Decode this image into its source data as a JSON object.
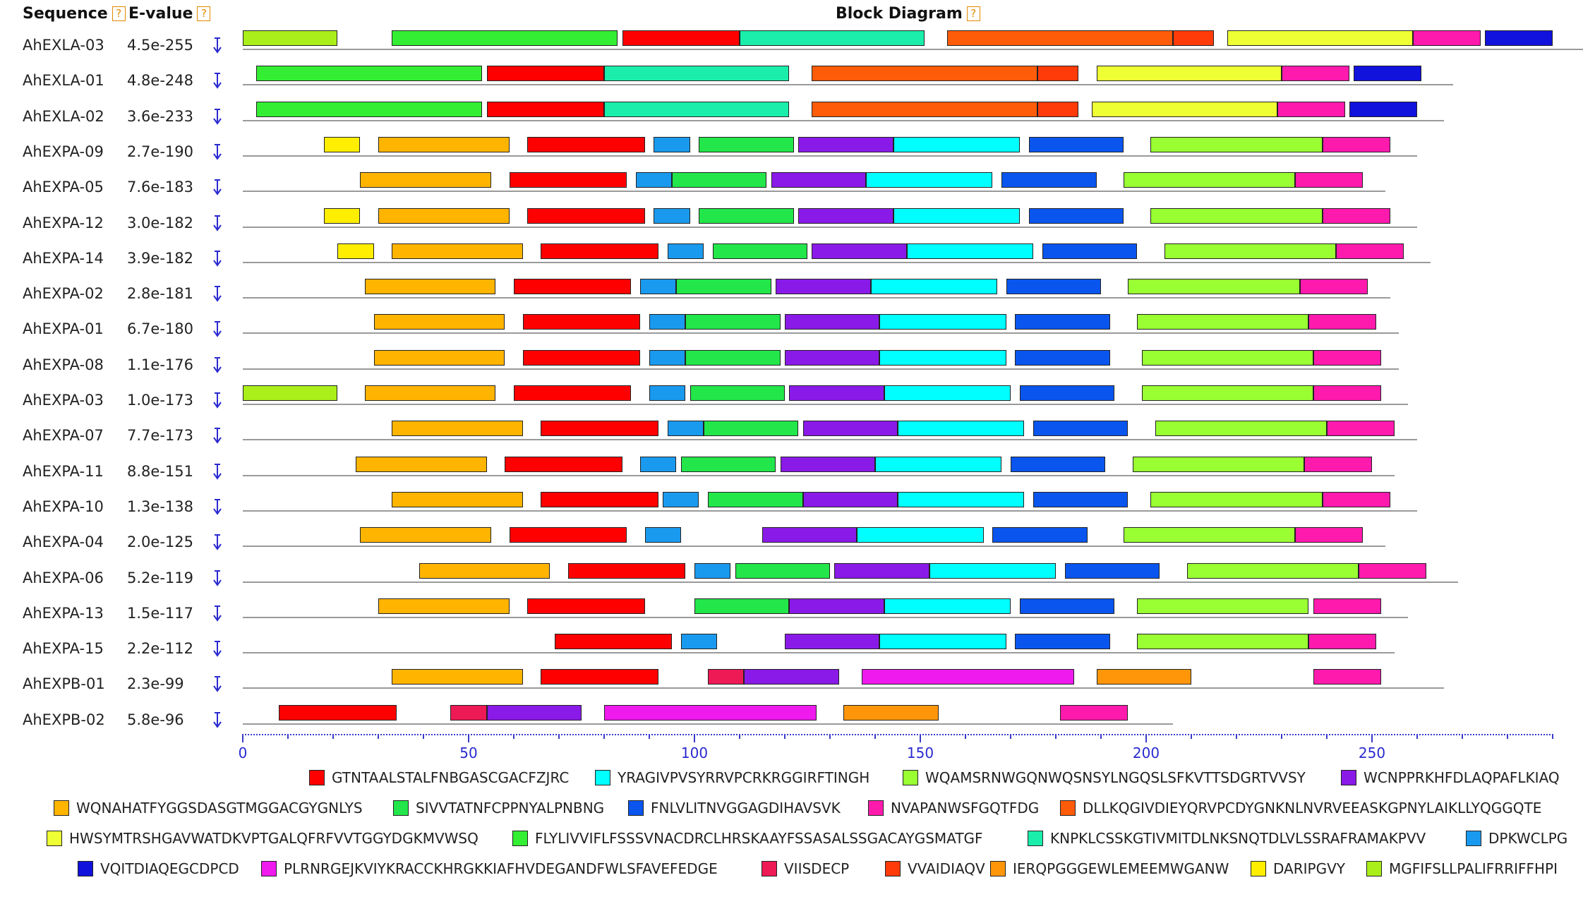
{
  "header": {
    "sequence_label": "Sequence",
    "evalue_label": "E-value",
    "diagram_label": "Block Diagram",
    "help_glyph": "?"
  },
  "download_icon": "download-arrow-icon",
  "motifs": [
    {
      "id": 1,
      "color": "#ff0000",
      "seq": "GTNTAALSTALFNBGASCGACFZJRC"
    },
    {
      "id": 2,
      "color": "#00ffff",
      "seq": "YRAGIVPVSYRRVPCRKRGGIRFTINGH"
    },
    {
      "id": 3,
      "color": "#99ff33",
      "seq": "WQAMSRNWGQNWQSNSYLNGQSLSFKVTTSDGRTVVSY"
    },
    {
      "id": 4,
      "color": "#8a1ae8",
      "seq": "WCNPPRKHFDLAQPAFLKIAQ"
    },
    {
      "id": 5,
      "color": "#ffb400",
      "seq": "WQNAHATFYGGSDASGTMGGACGYGNLYS"
    },
    {
      "id": 6,
      "color": "#22e64a",
      "seq": "SIVVTATNFCPPNYALPNBNG"
    },
    {
      "id": 7,
      "color": "#0a55ee",
      "seq": "FNLVLITNVGGAGDIHAVSVK"
    },
    {
      "id": 8,
      "color": "#ff1aae",
      "seq": "NVAPANWSFGQTFDG"
    },
    {
      "id": 9,
      "color": "#ff5c0a",
      "seq": "DLLKQGIVDIEYQRVPCDYGNKNLNVRVEEASKGPNYLAIKLLYQGGQTE"
    },
    {
      "id": 10,
      "color": "#eeff33",
      "seq": "HWSYMTRSHGAVWATDKVPTGALQFRFVVTGGYDGKMVWSQ"
    },
    {
      "id": 11,
      "color": "#33ee33",
      "seq": "FLYLIVVIFLFSSSVNACDRCLHRSKAAYFSSASALSSGACAYGSMATGF"
    },
    {
      "id": 12,
      "color": "#1aeeaa",
      "seq": "KNPKLCSSKGTIVMITDLNKSNQTDLVLSSRAFRAMAKPVV"
    },
    {
      "id": 13,
      "color": "#1a9aee",
      "seq": "DPKWCLPG"
    },
    {
      "id": 14,
      "color": "#1212dd",
      "seq": "VQITDIAQEGCDPCD"
    },
    {
      "id": 15,
      "color": "#ee1aee",
      "seq": "PLRNRGEJKVIYKRACCKHRGKKIAFHVDEGANDFWLSFAVEFEDGE"
    },
    {
      "id": 16,
      "color": "#ee1a55",
      "seq": "VIISDECP"
    },
    {
      "id": 17,
      "color": "#ff3b0a",
      "seq": "VVAIDIAQV"
    },
    {
      "id": 18,
      "color": "#ff960a",
      "seq": "IERQPGGGEWLEMEEMWGANW"
    },
    {
      "id": 19,
      "color": "#ffee00",
      "seq": "DARIPGVY"
    },
    {
      "id": 20,
      "color": "#aaee1a",
      "seq": "MGFIFSLLPALIFRRIFFHPI"
    }
  ],
  "sequences": [
    {
      "name": "AhEXLA-03",
      "evalue": "4.5e-255",
      "length": 297,
      "blocks": [
        [
          0,
          21,
          20
        ],
        [
          33,
          83,
          11
        ],
        [
          84,
          110,
          1
        ],
        [
          110,
          151,
          12
        ],
        [
          156,
          206,
          9
        ],
        [
          206,
          215,
          17
        ],
        [
          218,
          259,
          10
        ],
        [
          259,
          274,
          8
        ],
        [
          275,
          290,
          14
        ]
      ]
    },
    {
      "name": "AhEXLA-01",
      "evalue": "4.8e-248",
      "length": 268,
      "blocks": [
        [
          3,
          53,
          11
        ],
        [
          54,
          80,
          1
        ],
        [
          80,
          121,
          12
        ],
        [
          126,
          176,
          9
        ],
        [
          176,
          185,
          17
        ],
        [
          189,
          230,
          10
        ],
        [
          230,
          245,
          8
        ],
        [
          246,
          261,
          14
        ]
      ]
    },
    {
      "name": "AhEXLA-02",
      "evalue": "3.6e-233",
      "length": 266,
      "blocks": [
        [
          3,
          53,
          11
        ],
        [
          54,
          80,
          1
        ],
        [
          80,
          121,
          12
        ],
        [
          126,
          176,
          9
        ],
        [
          176,
          185,
          17
        ],
        [
          188,
          229,
          10
        ],
        [
          229,
          244,
          8
        ],
        [
          245,
          260,
          14
        ]
      ]
    },
    {
      "name": "AhEXPA-09",
      "evalue": "2.7e-190",
      "length": 260,
      "blocks": [
        [
          18,
          26,
          19
        ],
        [
          30,
          59,
          5
        ],
        [
          63,
          89,
          1
        ],
        [
          91,
          99,
          13
        ],
        [
          101,
          122,
          6
        ],
        [
          123,
          144,
          4
        ],
        [
          144,
          172,
          2
        ],
        [
          174,
          195,
          7
        ],
        [
          201,
          239,
          3
        ],
        [
          239,
          254,
          8
        ]
      ]
    },
    {
      "name": "AhEXPA-05",
      "evalue": "7.6e-183",
      "length": 253,
      "blocks": [
        [
          26,
          55,
          5
        ],
        [
          59,
          85,
          1
        ],
        [
          87,
          95,
          13
        ],
        [
          95,
          116,
          6
        ],
        [
          117,
          138,
          4
        ],
        [
          138,
          166,
          2
        ],
        [
          168,
          189,
          7
        ],
        [
          195,
          233,
          3
        ],
        [
          233,
          248,
          8
        ]
      ]
    },
    {
      "name": "AhEXPA-12",
      "evalue": "3.0e-182",
      "length": 260,
      "blocks": [
        [
          18,
          26,
          19
        ],
        [
          30,
          59,
          5
        ],
        [
          63,
          89,
          1
        ],
        [
          91,
          99,
          13
        ],
        [
          101,
          122,
          6
        ],
        [
          123,
          144,
          4
        ],
        [
          144,
          172,
          2
        ],
        [
          174,
          195,
          7
        ],
        [
          201,
          239,
          3
        ],
        [
          239,
          254,
          8
        ]
      ]
    },
    {
      "name": "AhEXPA-14",
      "evalue": "3.9e-182",
      "length": 263,
      "blocks": [
        [
          21,
          29,
          19
        ],
        [
          33,
          62,
          5
        ],
        [
          66,
          92,
          1
        ],
        [
          94,
          102,
          13
        ],
        [
          104,
          125,
          6
        ],
        [
          126,
          147,
          4
        ],
        [
          147,
          175,
          2
        ],
        [
          177,
          198,
          7
        ],
        [
          204,
          242,
          3
        ],
        [
          242,
          257,
          8
        ]
      ]
    },
    {
      "name": "AhEXPA-02",
      "evalue": "2.8e-181",
      "length": 254,
      "blocks": [
        [
          27,
          56,
          5
        ],
        [
          60,
          86,
          1
        ],
        [
          88,
          96,
          13
        ],
        [
          96,
          117,
          6
        ],
        [
          118,
          139,
          4
        ],
        [
          139,
          167,
          2
        ],
        [
          169,
          190,
          7
        ],
        [
          196,
          234,
          3
        ],
        [
          234,
          249,
          8
        ]
      ]
    },
    {
      "name": "AhEXPA-01",
      "evalue": "6.7e-180",
      "length": 256,
      "blocks": [
        [
          29,
          58,
          5
        ],
        [
          62,
          88,
          1
        ],
        [
          90,
          98,
          13
        ],
        [
          98,
          119,
          6
        ],
        [
          120,
          141,
          4
        ],
        [
          141,
          169,
          2
        ],
        [
          171,
          192,
          7
        ],
        [
          198,
          236,
          3
        ],
        [
          236,
          251,
          8
        ]
      ]
    },
    {
      "name": "AhEXPA-08",
      "evalue": "1.1e-176",
      "length": 256,
      "blocks": [
        [
          29,
          58,
          5
        ],
        [
          62,
          88,
          1
        ],
        [
          90,
          98,
          13
        ],
        [
          98,
          119,
          6
        ],
        [
          120,
          141,
          4
        ],
        [
          141,
          169,
          2
        ],
        [
          171,
          192,
          7
        ],
        [
          199,
          237,
          3
        ],
        [
          237,
          252,
          8
        ]
      ]
    },
    {
      "name": "AhEXPA-03",
      "evalue": "1.0e-173",
      "length": 258,
      "blocks": [
        [
          0,
          21,
          20
        ],
        [
          27,
          56,
          5
        ],
        [
          60,
          86,
          1
        ],
        [
          90,
          98,
          13
        ],
        [
          99,
          120,
          6
        ],
        [
          121,
          142,
          4
        ],
        [
          142,
          170,
          2
        ],
        [
          172,
          193,
          7
        ],
        [
          199,
          237,
          3
        ],
        [
          237,
          252,
          8
        ]
      ]
    },
    {
      "name": "AhEXPA-07",
      "evalue": "7.7e-173",
      "length": 260,
      "blocks": [
        [
          33,
          62,
          5
        ],
        [
          66,
          92,
          1
        ],
        [
          94,
          102,
          13
        ],
        [
          102,
          123,
          6
        ],
        [
          124,
          145,
          4
        ],
        [
          145,
          173,
          2
        ],
        [
          175,
          196,
          7
        ],
        [
          202,
          240,
          3
        ],
        [
          240,
          255,
          8
        ]
      ]
    },
    {
      "name": "AhEXPA-11",
      "evalue": "8.8e-151",
      "length": 255,
      "blocks": [
        [
          25,
          54,
          5
        ],
        [
          58,
          84,
          1
        ],
        [
          88,
          96,
          13
        ],
        [
          97,
          118,
          6
        ],
        [
          119,
          140,
          4
        ],
        [
          140,
          168,
          2
        ],
        [
          170,
          191,
          7
        ],
        [
          197,
          235,
          3
        ],
        [
          235,
          250,
          8
        ]
      ]
    },
    {
      "name": "AhEXPA-10",
      "evalue": "1.3e-138",
      "length": 260,
      "blocks": [
        [
          33,
          62,
          5
        ],
        [
          66,
          92,
          1
        ],
        [
          93,
          101,
          13
        ],
        [
          103,
          124,
          6
        ],
        [
          124,
          145,
          4
        ],
        [
          145,
          173,
          2
        ],
        [
          175,
          196,
          7
        ],
        [
          201,
          239,
          3
        ],
        [
          239,
          254,
          8
        ]
      ]
    },
    {
      "name": "AhEXPA-04",
      "evalue": "2.0e-125",
      "length": 253,
      "blocks": [
        [
          26,
          55,
          5
        ],
        [
          59,
          85,
          1
        ],
        [
          89,
          97,
          13
        ],
        [
          115,
          136,
          4
        ],
        [
          136,
          164,
          2
        ],
        [
          166,
          187,
          7
        ],
        [
          195,
          233,
          3
        ],
        [
          233,
          248,
          8
        ]
      ]
    },
    {
      "name": "AhEXPA-06",
      "evalue": "5.2e-119",
      "length": 269,
      "blocks": [
        [
          39,
          68,
          5
        ],
        [
          72,
          98,
          1
        ],
        [
          100,
          108,
          13
        ],
        [
          109,
          130,
          6
        ],
        [
          131,
          152,
          4
        ],
        [
          152,
          180,
          2
        ],
        [
          182,
          203,
          7
        ],
        [
          209,
          247,
          3
        ],
        [
          247,
          262,
          8
        ]
      ]
    },
    {
      "name": "AhEXPA-13",
      "evalue": "1.5e-117",
      "length": 258,
      "blocks": [
        [
          30,
          59,
          5
        ],
        [
          63,
          89,
          1
        ],
        [
          100,
          121,
          6
        ],
        [
          121,
          142,
          4
        ],
        [
          142,
          170,
          2
        ],
        [
          172,
          193,
          7
        ],
        [
          198,
          236,
          3
        ],
        [
          237,
          252,
          8
        ]
      ]
    },
    {
      "name": "AhEXPA-15",
      "evalue": "2.2e-112",
      "length": 255,
      "blocks": [
        [
          69,
          95,
          1
        ],
        [
          97,
          105,
          13
        ],
        [
          120,
          141,
          4
        ],
        [
          141,
          169,
          2
        ],
        [
          171,
          192,
          7
        ],
        [
          198,
          236,
          3
        ],
        [
          236,
          251,
          8
        ]
      ]
    },
    {
      "name": "AhEXPB-01",
      "evalue": "2.3e-99",
      "length": 266,
      "blocks": [
        [
          33,
          62,
          5
        ],
        [
          66,
          92,
          1
        ],
        [
          103,
          111,
          16
        ],
        [
          111,
          132,
          4
        ],
        [
          137,
          184,
          15
        ],
        [
          189,
          210,
          18
        ],
        [
          237,
          252,
          8
        ]
      ]
    },
    {
      "name": "AhEXPB-02",
      "evalue": "5.8e-96",
      "length": 206,
      "blocks": [
        [
          8,
          34,
          1
        ],
        [
          46,
          54,
          16
        ],
        [
          54,
          75,
          4
        ],
        [
          80,
          127,
          15
        ],
        [
          133,
          154,
          18
        ],
        [
          181,
          196,
          8
        ]
      ]
    }
  ],
  "axis": {
    "ticks": [
      0,
      50,
      100,
      150,
      200,
      250
    ],
    "max": 297
  }
}
